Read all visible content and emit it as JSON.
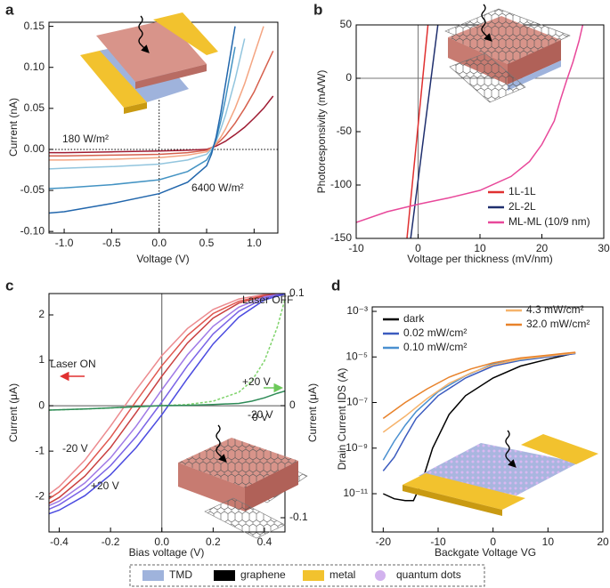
{
  "chart_data": [
    {
      "type": "line",
      "panel_label": "a",
      "x_label": "Voltage (V)",
      "y_label": "Current (nA)",
      "xlim": [
        -1.16,
        1.25
      ],
      "ylim": [
        -0.102,
        0.155
      ],
      "xticks": [
        {
          "value": -1.0,
          "label": "-1.0"
        },
        {
          "value": -0.5,
          "label": "-0.5"
        },
        {
          "value": 0,
          "label": "0.0"
        },
        {
          "value": 0.5,
          "label": "0.5"
        },
        {
          "value": 1.0,
          "label": "1.0"
        }
      ],
      "yticks": [
        {
          "value": -0.1,
          "label": "-0.10"
        },
        {
          "value": -0.05,
          "label": "-0.05"
        },
        {
          "value": 0,
          "label": "0.00"
        },
        {
          "value": 0.05,
          "label": "0.05"
        },
        {
          "value": 0.1,
          "label": "0.10"
        },
        {
          "value": 0.15,
          "label": "0.15"
        }
      ],
      "reference_lines": "dotted",
      "series": [
        {
          "color": "#9e1b32",
          "x": [
            -1.2,
            -1.0,
            -0.5,
            0,
            0.3,
            0.5,
            0.55,
            0.6,
            0.65,
            0.7,
            0.8,
            0.9,
            1.0,
            1.1,
            1.2
          ],
          "values": [
            -0.004,
            -0.004,
            -0.003,
            -0.002,
            -0.001,
            0.0,
            0.002,
            0.004,
            0.007,
            0.01,
            0.018,
            0.027,
            0.038,
            0.05,
            0.065
          ]
        },
        {
          "color": "#d6604d",
          "x": [
            -1.2,
            -1.0,
            -0.5,
            0,
            0.3,
            0.5,
            0.55,
            0.6,
            0.65,
            0.7,
            0.8,
            0.9,
            1.0,
            1.1,
            1.2
          ],
          "values": [
            -0.008,
            -0.008,
            -0.007,
            -0.006,
            -0.004,
            -0.001,
            0.002,
            0.006,
            0.011,
            0.017,
            0.032,
            0.05,
            0.07,
            0.095,
            0.12
          ]
        },
        {
          "color": "#f4a582",
          "x": [
            -1.2,
            -1.0,
            -0.5,
            0,
            0.3,
            0.5,
            0.55,
            0.6,
            0.65,
            0.7,
            0.8,
            0.9,
            1.0,
            1.1,
            1.2
          ],
          "values": [
            -0.013,
            -0.013,
            -0.012,
            -0.01,
            -0.007,
            -0.003,
            0.001,
            0.007,
            0.015,
            0.025,
            0.05,
            0.08,
            0.115,
            0.15,
            null
          ]
        },
        {
          "color": "#92c5de",
          "x": [
            -1.2,
            -1.0,
            -0.5,
            0,
            0.3,
            0.5,
            0.55,
            0.6,
            0.65,
            0.7,
            0.8,
            0.9,
            1.0,
            1.1,
            1.2
          ],
          "values": [
            -0.024,
            -0.023,
            -0.021,
            -0.018,
            -0.013,
            -0.006,
            0.0,
            0.01,
            0.025,
            0.042,
            0.085,
            0.135,
            null,
            null,
            null
          ]
        },
        {
          "color": "#4393c3",
          "x": [
            -1.2,
            -1.0,
            -0.5,
            0,
            0.3,
            0.5,
            0.55,
            0.6,
            0.65,
            0.7,
            0.8,
            0.9,
            1.0,
            1.1,
            1.2
          ],
          "values": [
            -0.048,
            -0.047,
            -0.043,
            -0.037,
            -0.027,
            -0.013,
            -0.003,
            0.012,
            0.035,
            0.062,
            0.125,
            null,
            null,
            null,
            null
          ]
        },
        {
          "color": "#2166ac",
          "x": [
            -1.2,
            -1.0,
            -0.5,
            0,
            0.3,
            0.5,
            0.55,
            0.6,
            0.65,
            0.7,
            0.8,
            0.9,
            1.0,
            1.1,
            1.2
          ],
          "values": [
            -0.078,
            -0.076,
            -0.066,
            -0.054,
            -0.04,
            -0.02,
            -0.006,
            0.015,
            0.045,
            0.08,
            0.15,
            null,
            null,
            null,
            null
          ]
        }
      ],
      "annotations": [
        {
          "text": "180 W/m²",
          "color": "#9e1b32"
        },
        {
          "text": "6400 W/m²",
          "color": "#2166ac"
        }
      ]
    },
    {
      "type": "line",
      "panel_label": "b",
      "x_label": "Voltage per thickness (mV/nm)",
      "y_label": "Photoresponsivity (mA/W)",
      "xlim": [
        -10,
        30
      ],
      "ylim": [
        -150,
        50
      ],
      "xticks": [
        -10,
        0,
        10,
        20,
        30
      ],
      "yticks": [
        -150,
        -100,
        -50,
        0,
        50
      ],
      "reference_lines": "solid",
      "legend": "lower right",
      "series": [
        {
          "name": "1L-1L",
          "color": "#e03030",
          "x": [
            -1.8,
            1.6
          ],
          "values": [
            -150,
            50
          ]
        },
        {
          "name": "2L-2L",
          "color": "#1f2f6e",
          "x": [
            -1.2,
            3.2
          ],
          "values": [
            -150,
            50
          ]
        },
        {
          "name": "ML-ML (10/9 nm)",
          "color": "#e8489a",
          "x": [
            -10,
            -5,
            0,
            5,
            10,
            15,
            18,
            20,
            22,
            23,
            24,
            25,
            26,
            26.6
          ],
          "values": [
            -135,
            -125,
            -118,
            -112,
            -105,
            -92,
            -78,
            -62,
            -40,
            -20,
            -2,
            15,
            35,
            50
          ]
        }
      ]
    },
    {
      "type": "line",
      "panel_label": "c",
      "x_label": "Bias voltage (V)",
      "y_label": "Current (μA)",
      "y2_label": "Current (μA)",
      "xlim": [
        -0.44,
        0.48
      ],
      "ylim": [
        -2.78,
        2.47
      ],
      "y2lim": [
        -0.1127,
        0.1
      ],
      "xticks": [
        -0.4,
        -0.2,
        {
          "value": 0,
          "label": "0.0"
        },
        0.2,
        0.4
      ],
      "yticks": [
        -2,
        -1,
        0,
        1,
        2
      ],
      "y2ticks": [
        -0.1,
        0,
        0.1
      ],
      "reference_lines": "axis",
      "series": [
        {
          "color": "#ec8b8f",
          "x": [
            -0.44,
            -0.4,
            -0.3,
            -0.2,
            -0.1,
            0,
            0.1,
            0.2,
            0.3,
            0.4,
            0.48
          ],
          "values": [
            -1.95,
            -1.78,
            -1.2,
            -0.45,
            0.35,
            1.1,
            1.7,
            2.12,
            2.35,
            2.45,
            2.48
          ]
        },
        {
          "color": "#e0574f",
          "x": [
            -0.44,
            -0.4,
            -0.3,
            -0.2,
            -0.1,
            0,
            0.1,
            0.2,
            0.3,
            0.4,
            0.48
          ],
          "values": [
            -2.05,
            -1.9,
            -1.38,
            -0.7,
            0.1,
            0.88,
            1.55,
            2.03,
            2.3,
            2.43,
            2.48
          ]
        },
        {
          "color": "#c94040",
          "x": [
            -0.44,
            -0.4,
            -0.3,
            -0.2,
            -0.1,
            0,
            0.1,
            0.2,
            0.3,
            0.4,
            0.48
          ],
          "values": [
            -2.15,
            -2.02,
            -1.55,
            -0.92,
            -0.15,
            0.65,
            1.38,
            1.93,
            2.26,
            2.42,
            2.48
          ]
        },
        {
          "color": "#a07ae6",
          "x": [
            -0.44,
            -0.4,
            -0.3,
            -0.2,
            -0.1,
            0,
            0.1,
            0.2,
            0.3,
            0.4,
            0.48
          ],
          "values": [
            -2.2,
            -2.1,
            -1.7,
            -1.15,
            -0.45,
            0.35,
            1.12,
            1.75,
            2.17,
            2.4,
            2.48
          ]
        },
        {
          "color": "#7a63e6",
          "x": [
            -0.44,
            -0.4,
            -0.3,
            -0.2,
            -0.1,
            0,
            0.1,
            0.2,
            0.3,
            0.4,
            0.48
          ],
          "values": [
            -2.28,
            -2.18,
            -1.82,
            -1.32,
            -0.68,
            0.08,
            0.88,
            1.58,
            2.08,
            2.37,
            2.47
          ]
        },
        {
          "color": "#4b4be0",
          "x": [
            -0.44,
            -0.4,
            -0.3,
            -0.2,
            -0.1,
            0,
            0.1,
            0.2,
            0.3,
            0.4,
            0.48
          ],
          "values": [
            -2.38,
            -2.3,
            -1.98,
            -1.52,
            -0.92,
            -0.2,
            0.6,
            1.36,
            1.95,
            2.33,
            2.46
          ]
        },
        {
          "color": "#7fd36b",
          "dashed": true,
          "axis": "y2",
          "x": [
            -0.44,
            -0.3,
            -0.1,
            0,
            0.1,
            0.2,
            0.3,
            0.35,
            0.4,
            0.45,
            0.48
          ],
          "values": [
            -0.004,
            -0.003,
            -0.001,
            0,
            0.001,
            0.004,
            0.012,
            0.022,
            0.04,
            0.07,
            0.095
          ]
        },
        {
          "color": "#2e8b57",
          "axis": "y2",
          "x": [
            -0.44,
            -0.3,
            -0.1,
            0,
            0.1,
            0.2,
            0.3,
            0.35,
            0.4,
            0.45,
            0.48
          ],
          "values": [
            -0.004,
            -0.003,
            -0.001,
            0,
            0.0003,
            0.001,
            0.002,
            0.004,
            0.007,
            0.011,
            0.013
          ]
        }
      ],
      "annotations": [
        {
          "text": "Laser ON",
          "color": "#e03030"
        },
        {
          "text": "Laser OFF",
          "color": "#6cc95a"
        },
        {
          "text": "+20 V",
          "color": "#6cc95a"
        },
        {
          "text": "0 V",
          "color": "#2e8b57"
        },
        {
          "text": "-20 V",
          "color": "#000000"
        },
        {
          "text": "-20 V",
          "color": "#e03030"
        },
        {
          "text": "+20 V",
          "color": "#3b3bd9"
        }
      ]
    },
    {
      "type": "line",
      "panel_label": "d",
      "x_label": "Backgate Voltage VG",
      "y_label": "Drain Current IDS (A)",
      "xlim": [
        -22,
        20
      ],
      "ylim": [
        2.1e-13,
        0.00157
      ],
      "ylog": true,
      "xticks": [
        -20,
        -10,
        0,
        10,
        20
      ],
      "yticks": [
        {
          "value": 1e-11,
          "label": "10⁻¹¹"
        },
        {
          "value": 1e-09,
          "label": "10⁻⁹"
        },
        {
          "value": 1e-07,
          "label": "10⁻⁷"
        },
        {
          "value": 1e-05,
          "label": "10⁻⁵"
        },
        {
          "value": 0.001,
          "label": "10⁻³"
        }
      ],
      "legend": "upper",
      "series": [
        {
          "name": "dark",
          "color": "#000000",
          "x": [
            -20,
            -18,
            -16,
            -14.5,
            -13,
            -11,
            -8,
            -5,
            0,
            5,
            10,
            15
          ],
          "values": [
            1e-11,
            6e-12,
            5e-12,
            5e-12,
            3e-11,
            1e-09,
            3e-08,
            2e-07,
            1.2e-06,
            4e-06,
            8e-06,
            1.5e-05
          ]
        },
        {
          "name": "0.02 mW/cm²",
          "color": "#3b5bbf",
          "x": [
            -20,
            -18,
            -16,
            -14,
            -10,
            -5,
            0,
            5,
            10,
            15
          ],
          "values": [
            1e-10,
            4e-10,
            3e-09,
            2e-08,
            2e-07,
            1.2e-06,
            4e-06,
            7e-06,
            1e-05,
            1.4e-05
          ]
        },
        {
          "name": "0.10 mW/cm²",
          "color": "#4a90d0",
          "x": [
            -20,
            -18,
            -16,
            -14,
            -10,
            -5,
            0,
            10,
            15
          ],
          "values": [
            3e-10,
            2e-09,
            1e-08,
            4e-08,
            3e-07,
            1.5e-06,
            5e-06,
            1.1e-05,
            1.5e-05
          ]
        },
        {
          "name": "4.3 mW/cm²",
          "color": "#f6b36b",
          "x": [
            -20,
            -16,
            -12,
            -8,
            -4,
            0,
            5,
            10,
            15
          ],
          "values": [
            5e-09,
            2.5e-08,
            1.5e-07,
            7e-07,
            2e-06,
            4.5e-06,
            8e-06,
            1.1e-05,
            1.5e-05
          ]
        },
        {
          "name": "32.0 mW/cm²",
          "color": "#e8822a",
          "x": [
            -20,
            -16,
            -12,
            -8,
            -4,
            0,
            5,
            10,
            15
          ],
          "values": [
            2e-08,
            1e-07,
            4e-07,
            1.3e-06,
            3e-06,
            5.5e-06,
            9e-06,
            1.2e-05,
            1.6e-05
          ]
        }
      ]
    }
  ],
  "legend": {
    "items": [
      {
        "name": "TMD",
        "color": "#9fb3dc"
      },
      {
        "name": "graphene",
        "color": "#000000"
      },
      {
        "name": "metal",
        "color": "#f2c22e"
      },
      {
        "name": "quantum dots",
        "color": "#d2b2ee",
        "marker": "circle"
      }
    ]
  }
}
